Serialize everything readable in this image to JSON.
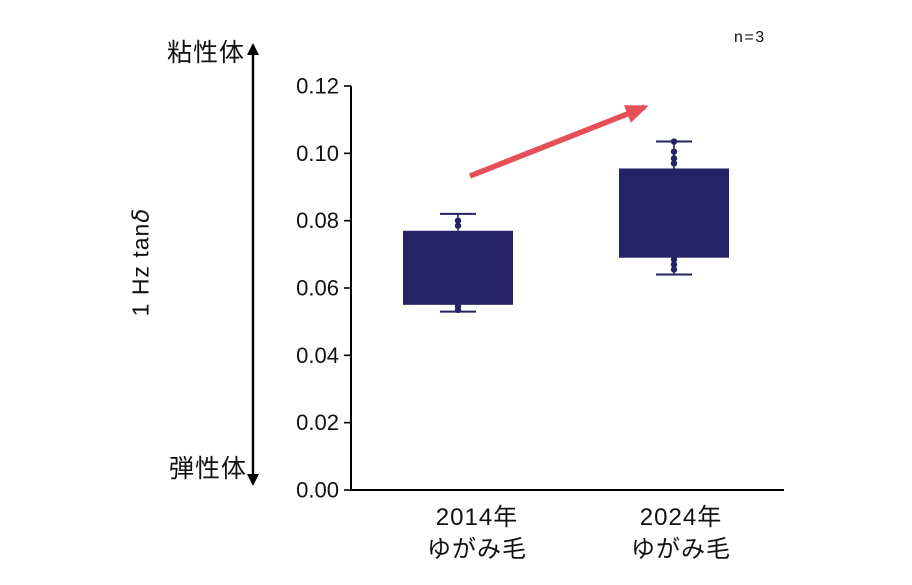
{
  "figure": {
    "n_label": "n=3",
    "left_scale": {
      "top_label": "粘性体",
      "bottom_label": "弾性体",
      "ylabel_prefix": "1 Hz tan",
      "ylabel_symbol": "δ"
    }
  },
  "colors": {
    "box": "#252366",
    "axis": "#000000",
    "text": "#111111",
    "arrow": "#e64e58"
  },
  "chart_data": {
    "type": "box",
    "title": "",
    "ylabel": "1 Hz tanδ",
    "ylim": [
      0,
      0.12
    ],
    "ytick_step": 0.02,
    "yticks": [
      0,
      0.02,
      0.04,
      0.06,
      0.08,
      0.1,
      0.12
    ],
    "grid": false,
    "legend": false,
    "categories": [
      {
        "label": "2014年",
        "sublabel": "ゆがみ毛"
      },
      {
        "label": "2024年",
        "sublabel": "ゆがみ毛"
      }
    ],
    "boxes": [
      {
        "category": "2014年 ゆがみ毛",
        "whisker_low": 0.053,
        "q1": 0.055,
        "q3": 0.077,
        "whisker_high": 0.082,
        "points": [
          0.08,
          0.0785,
          0.0545,
          0.0535
        ]
      },
      {
        "category": "2024年 ゆがみ毛",
        "whisker_low": 0.064,
        "q1": 0.069,
        "q3": 0.0955,
        "whisker_high": 0.1035,
        "points": [
          0.1035,
          0.1005,
          0.0985,
          0.097,
          0.0685,
          0.067,
          0.0655
        ]
      }
    ],
    "annotations": {
      "sample_size": "n=3",
      "trend_arrow": {
        "direction": "up-right",
        "color": "#e64e58"
      },
      "scale_arrow": {
        "top": "粘性体",
        "bottom": "弾性体"
      }
    }
  }
}
